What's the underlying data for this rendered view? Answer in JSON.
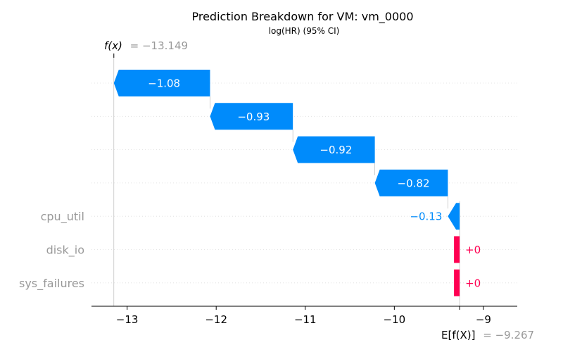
{
  "chart_data": {
    "type": "waterfall",
    "title": "Prediction Breakdown for VM: vm_0000",
    "subtitle": "log(HR) (95% CI)",
    "fx_label": "f(x)",
    "fx_value": "= −13.149",
    "fx": -13.149,
    "ex_label": "E[f(X)]",
    "ex_value": "= −9.267",
    "ex": -9.267,
    "xlim": [
      -13.4,
      -8.62
    ],
    "xticks": [
      -13,
      -12,
      -11,
      -10,
      -9
    ],
    "xtick_labels": [
      "−13",
      "−12",
      "−11",
      "−10",
      "−9"
    ],
    "colors": {
      "negative": "#008bfb",
      "positive": "#ff0051"
    },
    "bars": [
      {
        "feature": "",
        "value": -1.08,
        "start": -12.069,
        "end": -13.149,
        "label": "−1.08"
      },
      {
        "feature": "",
        "value": -0.93,
        "start": -11.139,
        "end": -12.069,
        "label": "−0.93"
      },
      {
        "feature": "",
        "value": -0.92,
        "start": -10.219,
        "end": -11.139,
        "label": "−0.92"
      },
      {
        "feature": "",
        "value": -0.82,
        "start": -9.399,
        "end": -10.219,
        "label": "−0.82"
      },
      {
        "feature": "cpu_util",
        "value": -0.13,
        "start": -9.267,
        "end": -9.399,
        "label": "−0.13"
      },
      {
        "feature": "disk_io",
        "value": 0,
        "start": -9.267,
        "end": -9.267,
        "label": "+0"
      },
      {
        "feature": "sys_failures",
        "value": 0,
        "start": -9.267,
        "end": -9.267,
        "label": "+0"
      }
    ]
  }
}
